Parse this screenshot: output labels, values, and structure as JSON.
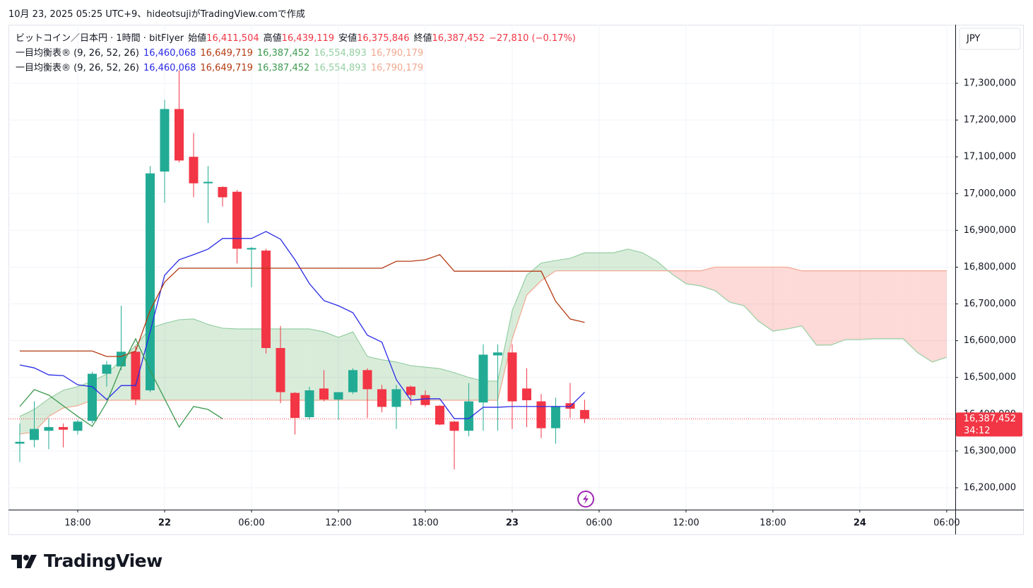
{
  "header": {
    "caption": "10月 23, 2025 05:25 UTC+9、hideotsujiがTradingView.comで作成"
  },
  "chart_data": {
    "type": "candlestick",
    "title": "ビットコイン／日本円 · 1時間 · bitFlyer",
    "ohlc_summary": [
      {
        "label": "始値",
        "value": "16,411,504"
      },
      {
        "label": "高値",
        "value": "16,439,119"
      },
      {
        "label": "安値",
        "value": "16,375,846"
      },
      {
        "label": "終値",
        "value": "16,387,452"
      }
    ],
    "change": "−27,810 (−0.17%)",
    "currency": "JPY",
    "indicator_legend": [
      {
        "name": "一目均衡表® (9, 26, 52, 26)",
        "values": [
          "16,460,068",
          "16,649,719",
          "16,387,452",
          "16,554,893",
          "16,790,179"
        ]
      },
      {
        "name": "一目均衡表® (9, 26, 52, 26)",
        "values": [
          "16,460,068",
          "16,649,719",
          "16,387,452",
          "16,554,893",
          "16,790,179"
        ]
      }
    ],
    "x": [
      -4,
      -3,
      -2,
      -1,
      0,
      1,
      2,
      3,
      4,
      5,
      6,
      7,
      8,
      9,
      10,
      11,
      12,
      13,
      14,
      15,
      16,
      17,
      18,
      19,
      20,
      21,
      22,
      23,
      24,
      25,
      26,
      27,
      28,
      29,
      30,
      31,
      32,
      33,
      34,
      35
    ],
    "open": [
      16320000,
      16330000,
      16355000,
      16365000,
      16355000,
      16382000,
      16510000,
      16530000,
      16570000,
      16465000,
      17060000,
      17230000,
      17100000,
      17028000,
      17018000,
      17005000,
      16848000,
      16845000,
      16580000,
      16458000,
      16392000,
      16470000,
      16440000,
      16460000,
      16520000,
      16468000,
      16420000,
      16475000,
      16452000,
      16423000,
      16380000,
      16355000,
      16432000,
      16560000,
      16568000,
      16470000,
      16435000,
      16362000,
      16430000,
      16411504
    ],
    "high": [
      16375000,
      16435000,
      16390000,
      16375000,
      16385000,
      16515000,
      16545000,
      16695000,
      16585000,
      17075000,
      17255000,
      17335000,
      17165000,
      17075000,
      17020000,
      17010000,
      16855000,
      16850000,
      16640000,
      16460000,
      16475000,
      16520000,
      16460000,
      16525000,
      16525000,
      16480000,
      16480000,
      16478000,
      16465000,
      16425000,
      16382000,
      16485000,
      16590000,
      16590000,
      16590000,
      16525000,
      16455000,
      16445000,
      16485000,
      16439119
    ],
    "low": [
      16270000,
      16310000,
      16305000,
      16310000,
      16345000,
      16375000,
      16475000,
      16520000,
      16425000,
      16460000,
      16975000,
      17085000,
      16990000,
      16920000,
      16965000,
      16810000,
      16745000,
      16565000,
      16430000,
      16345000,
      16385000,
      16435000,
      16385000,
      16455000,
      16390000,
      16405000,
      16360000,
      16425000,
      16420000,
      16370000,
      16250000,
      16340000,
      16355000,
      16355000,
      16360000,
      16365000,
      16335000,
      16320000,
      16390000,
      16375846
    ],
    "close": [
      16325000,
      16360000,
      16365000,
      16358000,
      16380000,
      16510000,
      16535000,
      16570000,
      16440000,
      17055000,
      17230000,
      17090000,
      17028000,
      17032000,
      16990000,
      16850000,
      16852000,
      16580000,
      16460000,
      16390000,
      16465000,
      16440000,
      16460000,
      16520000,
      16468000,
      16420000,
      16468000,
      16452000,
      16425000,
      16372000,
      16355000,
      16435000,
      16562000,
      16568000,
      16435000,
      16438000,
      16362000,
      16422000,
      16415000,
      16387452
    ],
    "up_color": "#22ab94",
    "down_color": "#f23645",
    "overlays": [
      {
        "color": "#2a2ae6",
        "x": [
          -4,
          -3,
          -2,
          -1,
          0,
          1,
          2,
          3,
          4,
          5,
          6,
          7,
          8,
          9,
          10,
          11,
          12,
          13,
          14,
          15,
          16,
          17,
          18,
          19,
          20,
          21,
          22,
          23,
          24,
          25,
          26,
          27,
          28,
          29,
          30,
          31,
          32,
          33,
          34,
          35
        ],
        "values": [
          16534000,
          16526000,
          16507000,
          16505000,
          16480000,
          16475000,
          16440000,
          16478000,
          16478000,
          16624000,
          16778000,
          16820000,
          16834000,
          16849000,
          16878000,
          16878000,
          16878000,
          16897000,
          16876000,
          16820000,
          16755000,
          16709000,
          16695000,
          16676000,
          16615000,
          16596000,
          16494000,
          16438000,
          16442000,
          16442000,
          16388000,
          16388000,
          16419000,
          16419000,
          16421000,
          16421000,
          16421000,
          16421000,
          16421000,
          16460068
        ]
      },
      {
        "color": "#b43a12",
        "x": [
          -4,
          -3,
          -2,
          -1,
          0,
          1,
          2,
          3,
          4,
          5,
          6,
          7,
          8,
          9,
          10,
          11,
          12,
          13,
          14,
          15,
          16,
          17,
          18,
          19,
          20,
          21,
          22,
          23,
          24,
          25,
          26,
          27,
          28,
          29,
          30,
          31,
          32,
          33,
          34,
          35
        ],
        "values": [
          16572000,
          16572000,
          16572000,
          16572000,
          16572000,
          16572000,
          16557000,
          16557000,
          16572000,
          16682000,
          16759000,
          16797000,
          16797000,
          16797000,
          16797000,
          16797000,
          16797000,
          16797000,
          16797000,
          16797000,
          16797000,
          16797000,
          16797000,
          16797000,
          16797000,
          16797000,
          16816000,
          16816000,
          16820000,
          16834000,
          16789000,
          16789000,
          16789000,
          16789000,
          16789000,
          16789000,
          16789000,
          16707000,
          16659000,
          16649719
        ]
      },
      {
        "color": "#3d9a50",
        "x": [
          -4,
          -3,
          -2,
          -1,
          0,
          1,
          2,
          3,
          4,
          5,
          6,
          7,
          8,
          9,
          10
        ],
        "values": [
          16421000,
          16467000,
          16452000,
          16423000,
          16394000,
          16367000,
          16432000,
          16528000,
          16605000,
          16519000,
          16442000,
          16365000,
          16421000,
          16413000,
          16387452
        ]
      }
    ],
    "cloud": {
      "x": [
        -4,
        -3,
        -2,
        -1,
        0,
        1,
        2,
        3,
        4,
        5,
        6,
        7,
        8,
        9,
        10,
        11,
        12,
        13,
        14,
        15,
        16,
        17,
        18,
        19,
        20,
        21,
        22,
        23,
        24,
        25,
        26,
        27,
        28,
        29,
        30,
        31,
        32,
        33,
        34,
        35,
        36,
        37,
        38,
        39,
        40,
        41,
        42,
        43,
        44,
        45,
        46,
        47,
        48,
        49,
        50,
        51,
        52,
        53,
        54,
        55,
        56,
        57,
        58,
        59,
        60
      ],
      "span_a": {
        "color": "#95cfa2",
        "values": [
          16394000,
          16413000,
          16442000,
          16465000,
          16475000,
          16490000,
          16509000,
          16548000,
          16586000,
          16634000,
          16647000,
          16657000,
          16659000,
          16644000,
          16634000,
          16632000,
          16632000,
          16632000,
          16632000,
          16632000,
          16632000,
          16624000,
          16609000,
          16624000,
          16557000,
          16548000,
          16542000,
          16532000,
          16528000,
          16524000,
          16513000,
          16500000,
          16490000,
          16490000,
          16682000,
          16778000,
          16811000,
          16818000,
          16824000,
          16839000,
          16839000,
          16839000,
          16849000,
          16839000,
          16816000,
          16782000,
          16755000,
          16749000,
          16736000,
          16705000,
          16695000,
          16653000,
          16626000,
          16632000,
          16640000,
          16588000,
          16588000,
          16603000,
          16603000,
          16605000,
          16605000,
          16605000,
          16567000,
          16542000,
          16555000
        ]
      },
      "span_b": {
        "color": "#f2a88f",
        "values": [
          16346000,
          16352000,
          16394000,
          16417000,
          16423000,
          16438000,
          16438000,
          16438000,
          16438000,
          16438000,
          16438000,
          16438000,
          16438000,
          16438000,
          16438000,
          16438000,
          16438000,
          16438000,
          16438000,
          16438000,
          16438000,
          16438000,
          16438000,
          16438000,
          16438000,
          16438000,
          16438000,
          16438000,
          16438000,
          16438000,
          16438000,
          16438000,
          16438000,
          16438000,
          16605000,
          16724000,
          16763000,
          16790000,
          16790000,
          16790000,
          16790000,
          16790000,
          16790000,
          16790000,
          16790000,
          16790000,
          16790000,
          16790000,
          16800000,
          16800000,
          16800000,
          16800000,
          16800000,
          16800000,
          16790000,
          16790000,
          16790000,
          16790000,
          16790000,
          16790000,
          16790000,
          16790000,
          16790000,
          16790000,
          16790000
        ]
      },
      "up_fill": "rgba(67,160,71,0.2)",
      "down_fill": "rgba(244,67,54,0.2)"
    },
    "xlim": [
      -4.78,
      60.59
    ],
    "xticks": [
      {
        "value": 0,
        "label": "18:00"
      },
      {
        "value": 6,
        "label": "22"
      },
      {
        "value": 12,
        "label": "06:00"
      },
      {
        "value": 18,
        "label": "12:00"
      },
      {
        "value": 24,
        "label": "18:00"
      },
      {
        "value": 30,
        "label": "23"
      },
      {
        "value": 36,
        "label": "06:00"
      },
      {
        "value": 42,
        "label": "12:00"
      },
      {
        "value": 48,
        "label": "18:00"
      },
      {
        "value": 54,
        "label": "24"
      },
      {
        "value": 60,
        "label": "06:00"
      }
    ],
    "ylim": [
      16140500,
      17459300
    ],
    "yticks": [
      {
        "value": 16200000,
        "label": "16,200,000"
      },
      {
        "value": 16300000,
        "label": "16,300,000"
      },
      {
        "value": 16400000,
        "label": "16,400,000"
      },
      {
        "value": 16500000,
        "label": "16,500,000"
      },
      {
        "value": 16600000,
        "label": "16,600,000"
      },
      {
        "value": 16700000,
        "label": "16,700,000"
      },
      {
        "value": 16800000,
        "label": "16,800,000"
      },
      {
        "value": 16900000,
        "label": "16,900,000"
      },
      {
        "value": 17000000,
        "label": "17,000,000"
      },
      {
        "value": 17100000,
        "label": "17,100,000"
      },
      {
        "value": 17200000,
        "label": "17,200,000"
      },
      {
        "value": 17300000,
        "label": "17,300,000"
      }
    ],
    "grid": true,
    "last_price": {
      "value": 16387452,
      "label": "16,387,452"
    },
    "countdown": "34:12"
  },
  "footer": {
    "logo": "TradingView"
  }
}
